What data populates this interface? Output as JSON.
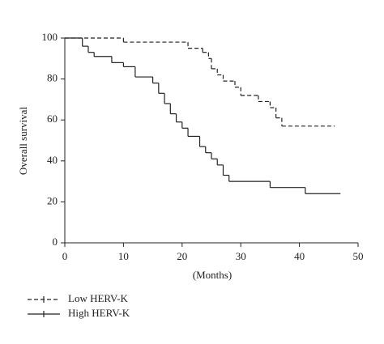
{
  "chart_data": {
    "type": "step",
    "x_label": "(Months)",
    "y_label": "Overall survival",
    "xlim": [
      0,
      50
    ],
    "xticks": [
      0,
      10,
      20,
      30,
      40,
      50
    ],
    "ylim": [
      0,
      100
    ],
    "yticks": [
      0,
      20,
      40,
      60,
      80,
      100
    ],
    "grid": false,
    "legend": "bottom-left",
    "series": [
      {
        "name": "Low HERV-K",
        "color": "#222222",
        "dash": true,
        "x": [
          0,
          10,
          21,
          23.5,
          24.5,
          25,
          26,
          27,
          29,
          30,
          33,
          35,
          36,
          37,
          46
        ],
        "values": [
          100,
          98,
          95,
          93,
          90,
          85,
          82,
          79,
          76,
          72,
          69,
          66,
          61,
          57,
          57
        ]
      },
      {
        "name": "High HERV-K",
        "color": "#222222",
        "dash": false,
        "x": [
          0,
          3,
          4,
          5,
          8,
          10,
          12,
          15,
          16,
          17,
          18,
          19,
          20,
          21,
          23,
          24,
          25,
          26,
          27,
          28,
          35,
          41,
          47
        ],
        "values": [
          100,
          96,
          93,
          91,
          88,
          86,
          81,
          78,
          73,
          68,
          63,
          59,
          56,
          52,
          47,
          44,
          41,
          38,
          33,
          30,
          27,
          24,
          24
        ]
      }
    ]
  }
}
